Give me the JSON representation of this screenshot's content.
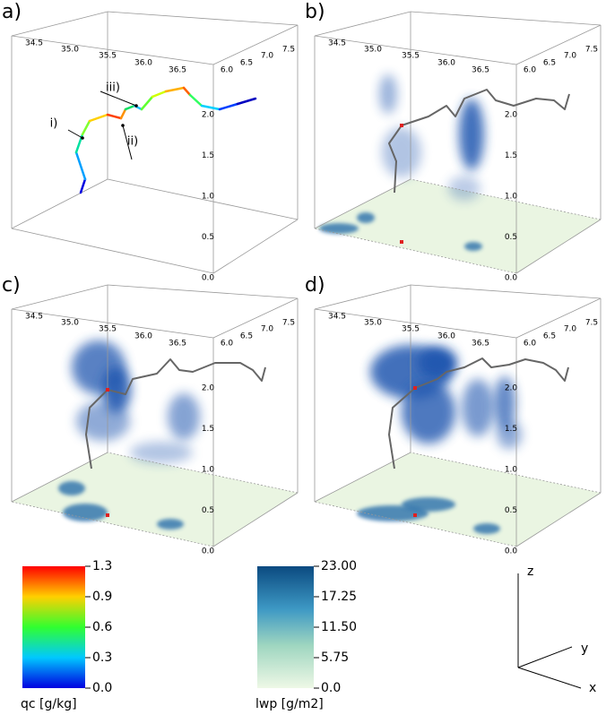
{
  "panels": [
    {
      "label": "a)",
      "x_ticks": [
        "34.5",
        "35.0",
        "35.5",
        "36.0",
        "36.5"
      ],
      "y_ticks": [
        "6.0",
        "6.5",
        "7.0",
        "7.5"
      ],
      "z_ticks": [
        "2.0",
        "1.5",
        "1.0",
        "0.5",
        "0.0"
      ],
      "annotations": [
        "i)",
        "ii)",
        "iii)"
      ]
    },
    {
      "label": "b)",
      "x_ticks": [
        "34.5",
        "35.0",
        "35.5",
        "36.0",
        "36.5"
      ],
      "y_ticks": [
        "6.0",
        "6.5",
        "7.0",
        "7.5"
      ],
      "z_ticks": [
        "2.0",
        "1.5",
        "1.0",
        "0.5",
        "0.0"
      ]
    },
    {
      "label": "c)",
      "x_ticks": [
        "34.5",
        "35.0",
        "35.5",
        "36.0",
        "36.5"
      ],
      "y_ticks": [
        "6.0",
        "6.5",
        "7.0",
        "7.5"
      ],
      "z_ticks": [
        "2.0",
        "1.5",
        "1.0",
        "0.5",
        "0.0"
      ]
    },
    {
      "label": "d)",
      "x_ticks": [
        "34.5",
        "35.0",
        "35.5",
        "36.0",
        "36.5"
      ],
      "y_ticks": [
        "6.0",
        "6.5",
        "7.0",
        "7.5"
      ],
      "z_ticks": [
        "2.0",
        "1.5",
        "1.0",
        "0.5",
        "0.0"
      ]
    }
  ],
  "colorbars": [
    {
      "label": "qc [g/kg]",
      "ticks": [
        "1.3",
        "0.9",
        "0.6",
        "0.3",
        "0.0"
      ]
    },
    {
      "label": "lwp [g/m2]",
      "ticks": [
        "23.00",
        "17.25",
        "11.50",
        "5.75",
        "0.0"
      ]
    }
  ],
  "axes_triad": {
    "z": "z",
    "y": "y",
    "x": "x"
  }
}
